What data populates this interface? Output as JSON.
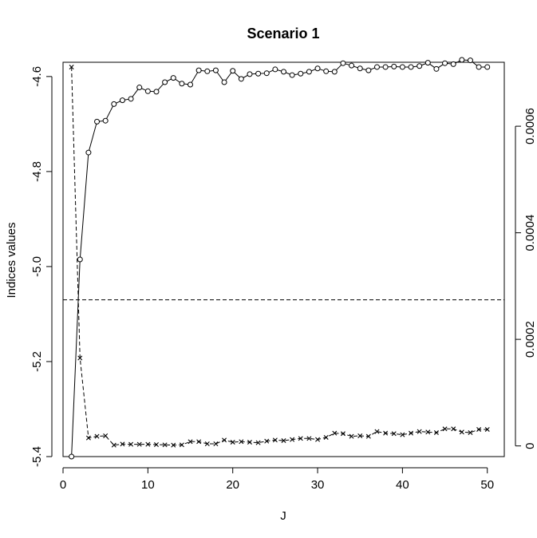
{
  "chart_data": {
    "type": "line",
    "title": "Scenario 1",
    "xlabel": "J",
    "ylabel": "Indices values",
    "ylabel_right": "",
    "xlim": [
      0,
      52
    ],
    "ylim": [
      -5.4,
      -4.57
    ],
    "ylim_right": [
      -2e-05,
      0.00072
    ],
    "xticks": [
      0,
      10,
      20,
      30,
      40,
      50
    ],
    "xtick_labels": [
      "0",
      "10",
      "20",
      "30",
      "40",
      "50"
    ],
    "yticks": [
      -5.4,
      -5.2,
      -5.0,
      -4.8,
      -4.6
    ],
    "ytick_labels": [
      "-5.4",
      "-5.2",
      "-5.0",
      "-4.8",
      "-4.6"
    ],
    "yticks_right": [
      0,
      0.0002,
      0.0004,
      0.0006
    ],
    "ytick_labels_right": [
      "0",
      "0.0002",
      "0.0004",
      "0.0006"
    ],
    "grid": false,
    "x": [
      1,
      2,
      3,
      4,
      5,
      6,
      7,
      8,
      9,
      10,
      11,
      12,
      13,
      14,
      15,
      16,
      17,
      18,
      19,
      20,
      21,
      22,
      23,
      24,
      25,
      26,
      27,
      28,
      29,
      30,
      31,
      32,
      33,
      34,
      35,
      36,
      37,
      38,
      39,
      40,
      41,
      42,
      43,
      44,
      45,
      46,
      47,
      48,
      49,
      50
    ],
    "series": [
      {
        "axis": "left",
        "marker": "circle",
        "line": "solid",
        "values": [
          -5.4,
          -4.985,
          -4.76,
          -4.695,
          -4.693,
          -4.658,
          -4.65,
          -4.647,
          -4.623,
          -4.631,
          -4.632,
          -4.612,
          -4.603,
          -4.615,
          -4.617,
          -4.587,
          -4.589,
          -4.587,
          -4.612,
          -4.588,
          -4.605,
          -4.595,
          -4.594,
          -4.593,
          -4.585,
          -4.59,
          -4.597,
          -4.594,
          -4.59,
          -4.583,
          -4.589,
          -4.59,
          -4.572,
          -4.577,
          -4.583,
          -4.587,
          -4.58,
          -4.58,
          -4.579,
          -4.58,
          -4.58,
          -4.578,
          -4.571,
          -4.584,
          -4.572,
          -4.574,
          -4.565,
          -4.566,
          -4.58,
          -4.58
        ]
      },
      {
        "axis": "right",
        "marker": "x",
        "line": "dashed",
        "values": [
          0.000711,
          0.000165,
          1.5e-05,
          1.8e-05,
          1.9e-05,
          1.5e-06,
          3.5e-06,
          3e-06,
          3e-06,
          3e-06,
          2.5e-06,
          2e-06,
          1.5e-06,
          2e-06,
          8e-06,
          8e-06,
          4e-06,
          4e-06,
          1.1e-05,
          7e-06,
          8e-06,
          7e-06,
          6e-06,
          9e-06,
          1.1e-05,
          1e-05,
          1.2e-05,
          1.4e-05,
          1.4e-05,
          1.2e-05,
          1.6e-05,
          2.4e-05,
          2.3e-05,
          1.8e-05,
          1.9e-05,
          1.8e-05,
          2.7e-05,
          2.4e-05,
          2.3e-05,
          2.1e-05,
          2.4e-05,
          2.7e-05,
          2.6e-05,
          2.5e-05,
          3.2e-05,
          3.2e-05,
          2.6e-05,
          2.5e-05,
          3.1e-05,
          3.1e-05
        ]
      }
    ],
    "hline": {
      "axis": "left",
      "value": -5.07,
      "line": "dashed"
    }
  }
}
